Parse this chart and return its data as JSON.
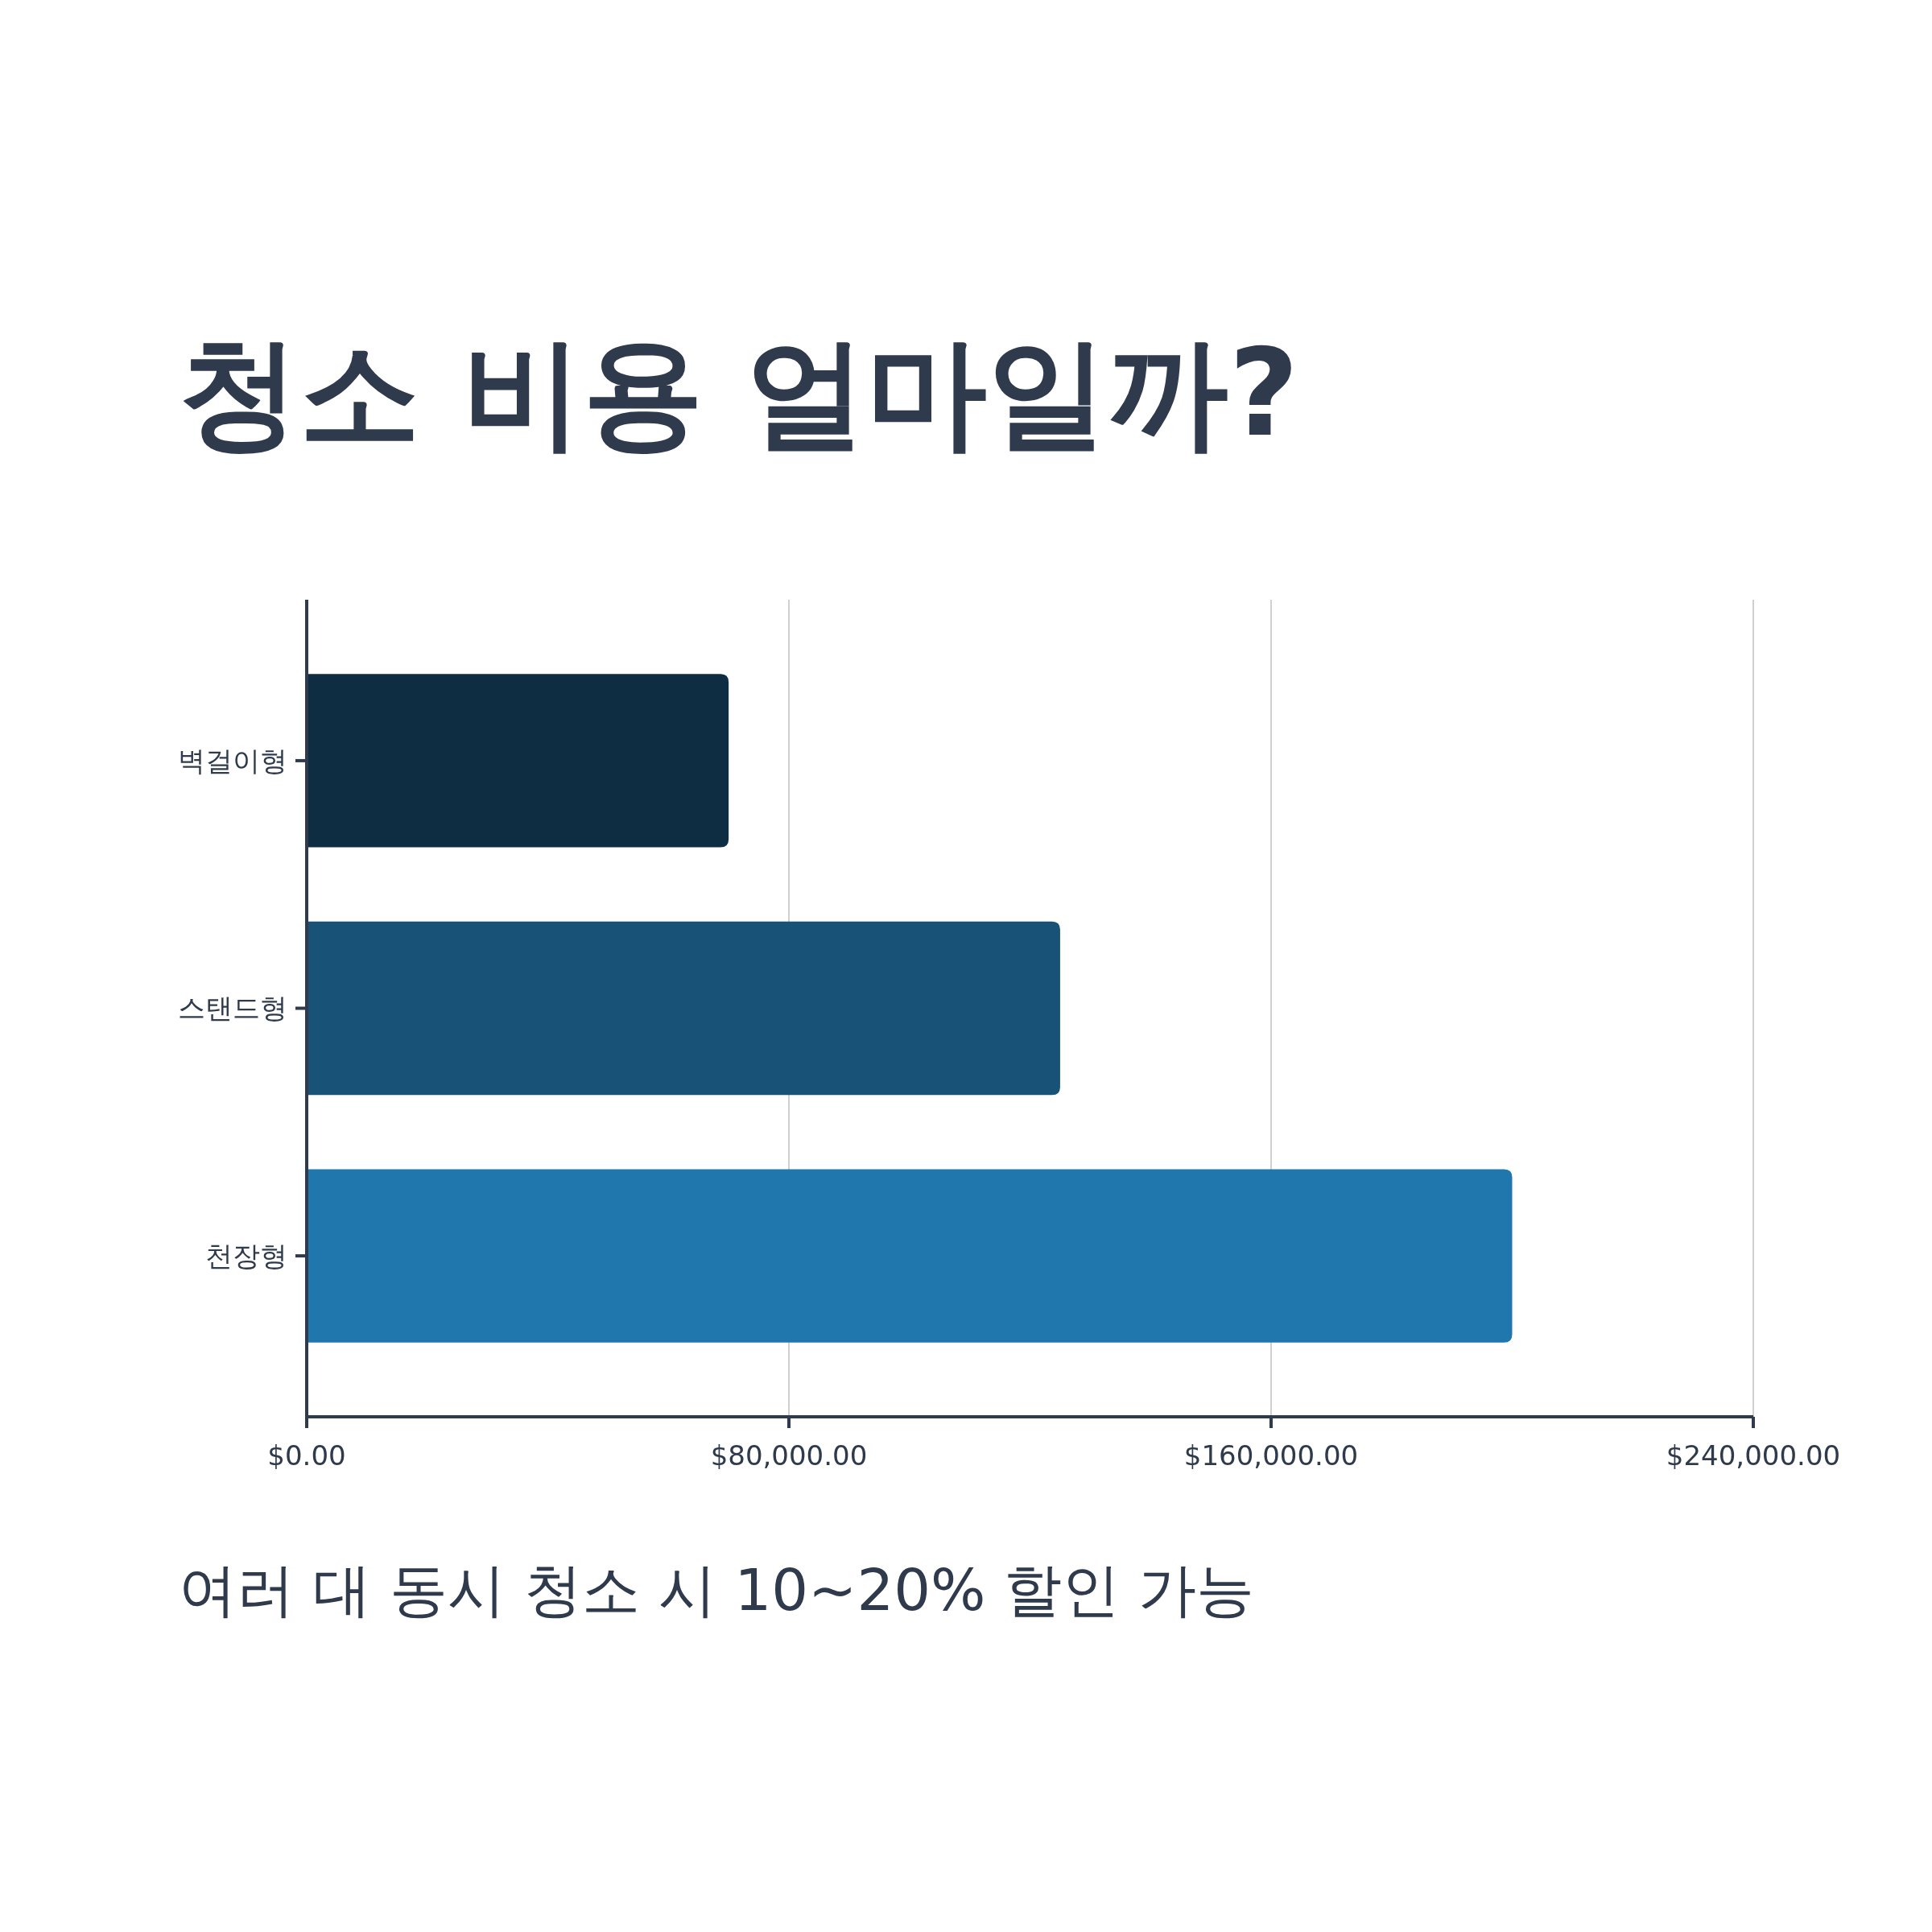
{
  "chart_data": {
    "type": "bar",
    "title": "청소 비용 얼마일까?",
    "orientation": "horizontal",
    "categories": [
      "벽걸이형",
      "스탠드형",
      "천장형"
    ],
    "values": [
      70000,
      125000,
      200000
    ],
    "colors": [
      "#0f2d42",
      "#185276",
      "#2077ad"
    ],
    "xlim": [
      0,
      240000
    ],
    "xticks": [
      {
        "value": 0,
        "label": "$0.00"
      },
      {
        "value": 80000,
        "label": "$80,000.00"
      },
      {
        "value": 160000,
        "label": "$160,000.00"
      },
      {
        "value": 240000,
        "label": "$240,000.00"
      }
    ],
    "grid": "x",
    "annotations": [
      "여러 대 동시 청소 시 10~20% 할인 가능"
    ]
  }
}
